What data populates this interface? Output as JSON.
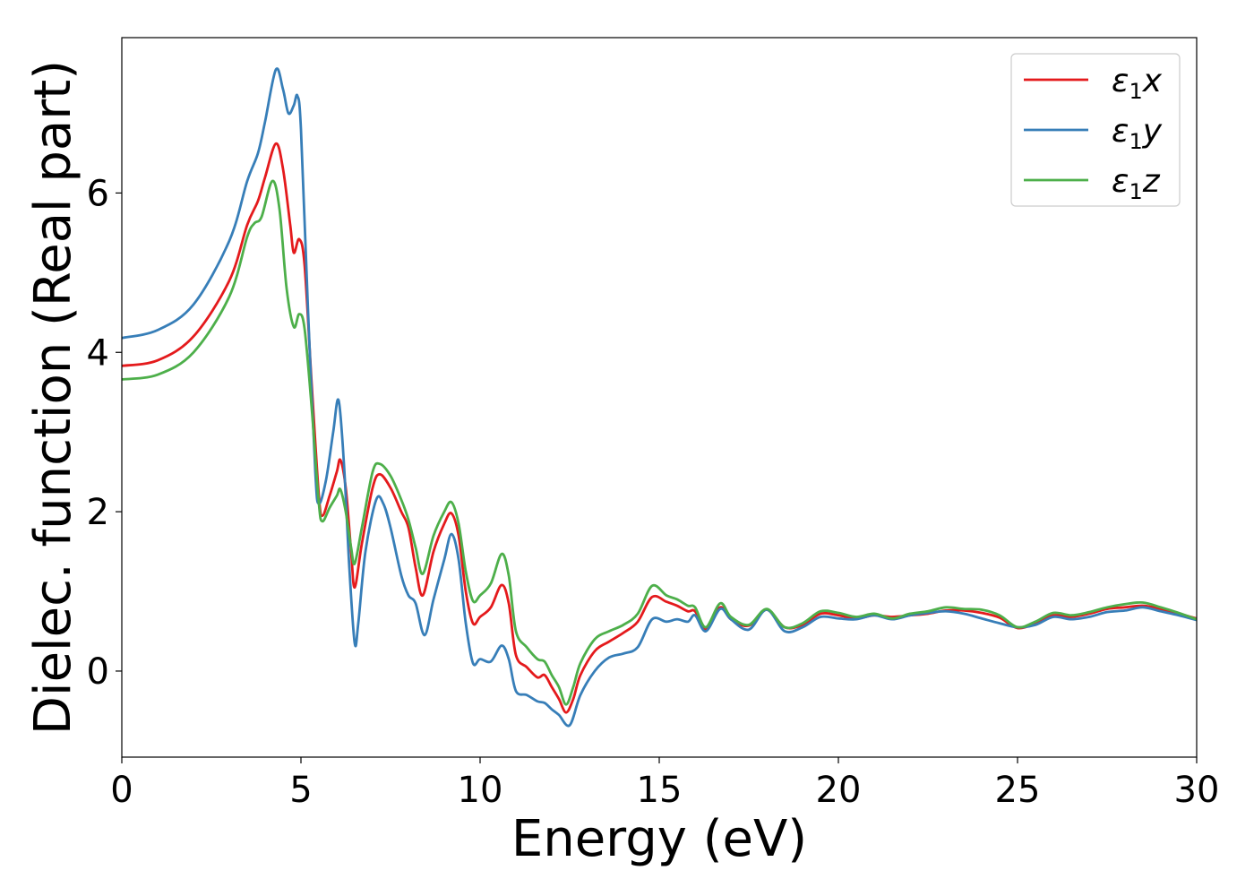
{
  "chart_data": {
    "type": "line",
    "xlabel": "Energy (eV)",
    "ylabel": "Dielec. function (Real part)",
    "xlim": [
      0,
      30
    ],
    "ylim": [
      -1.08,
      7.95
    ],
    "xticks": [
      0,
      5,
      10,
      15,
      20,
      25,
      30
    ],
    "yticks": [
      0,
      2,
      4,
      6
    ],
    "grid": false,
    "legend_position": "top-right",
    "series": [
      {
        "name": "ε1x",
        "label_base": "ε",
        "label_sub": "1",
        "label_var": "x",
        "color": "#e41a1c",
        "points": [
          [
            0,
            3.83
          ],
          [
            1,
            3.9
          ],
          [
            2,
            4.2
          ],
          [
            3,
            4.9
          ],
          [
            3.5,
            5.6
          ],
          [
            3.8,
            5.9
          ],
          [
            4.0,
            6.2
          ],
          [
            4.3,
            6.62
          ],
          [
            4.5,
            6.3
          ],
          [
            4.7,
            5.6
          ],
          [
            4.8,
            5.25
          ],
          [
            4.95,
            5.42
          ],
          [
            5.1,
            5.1
          ],
          [
            5.3,
            3.6
          ],
          [
            5.5,
            2.2
          ],
          [
            5.6,
            1.95
          ],
          [
            5.8,
            2.2
          ],
          [
            6.0,
            2.5
          ],
          [
            6.1,
            2.65
          ],
          [
            6.25,
            2.3
          ],
          [
            6.4,
            1.5
          ],
          [
            6.5,
            1.05
          ],
          [
            6.7,
            1.6
          ],
          [
            7.0,
            2.3
          ],
          [
            7.2,
            2.47
          ],
          [
            7.5,
            2.3
          ],
          [
            7.8,
            2.0
          ],
          [
            8.0,
            1.8
          ],
          [
            8.2,
            1.3
          ],
          [
            8.4,
            0.95
          ],
          [
            8.7,
            1.5
          ],
          [
            9.0,
            1.85
          ],
          [
            9.2,
            1.98
          ],
          [
            9.4,
            1.7
          ],
          [
            9.6,
            1.0
          ],
          [
            9.8,
            0.6
          ],
          [
            10.0,
            0.68
          ],
          [
            10.3,
            0.8
          ],
          [
            10.6,
            1.08
          ],
          [
            10.8,
            0.85
          ],
          [
            11.0,
            0.2
          ],
          [
            11.3,
            0.05
          ],
          [
            11.6,
            -0.08
          ],
          [
            11.8,
            -0.05
          ],
          [
            12.0,
            -0.2
          ],
          [
            12.2,
            -0.35
          ],
          [
            12.4,
            -0.52
          ],
          [
            12.6,
            -0.35
          ],
          [
            12.8,
            -0.05
          ],
          [
            13.2,
            0.25
          ],
          [
            13.6,
            0.37
          ],
          [
            14.0,
            0.48
          ],
          [
            14.4,
            0.62
          ],
          [
            14.8,
            0.93
          ],
          [
            15.2,
            0.87
          ],
          [
            15.5,
            0.82
          ],
          [
            15.8,
            0.75
          ],
          [
            16.0,
            0.75
          ],
          [
            16.3,
            0.52
          ],
          [
            16.7,
            0.8
          ],
          [
            17.0,
            0.65
          ],
          [
            17.5,
            0.57
          ],
          [
            18.0,
            0.77
          ],
          [
            18.5,
            0.55
          ],
          [
            19.0,
            0.58
          ],
          [
            19.5,
            0.72
          ],
          [
            20.0,
            0.7
          ],
          [
            20.5,
            0.66
          ],
          [
            21.0,
            0.7
          ],
          [
            21.5,
            0.68
          ],
          [
            22.0,
            0.7
          ],
          [
            22.5,
            0.72
          ],
          [
            23.0,
            0.76
          ],
          [
            23.5,
            0.76
          ],
          [
            24.0,
            0.73
          ],
          [
            24.5,
            0.67
          ],
          [
            25.0,
            0.54
          ],
          [
            25.5,
            0.6
          ],
          [
            26.0,
            0.7
          ],
          [
            26.5,
            0.68
          ],
          [
            27.0,
            0.72
          ],
          [
            27.5,
            0.78
          ],
          [
            28.0,
            0.8
          ],
          [
            28.5,
            0.82
          ],
          [
            29.0,
            0.78
          ],
          [
            29.5,
            0.72
          ],
          [
            30.0,
            0.66
          ]
        ]
      },
      {
        "name": "ε1y",
        "label_base": "ε",
        "label_sub": "1",
        "label_var": "y",
        "color": "#377eb8",
        "points": [
          [
            0,
            4.18
          ],
          [
            1,
            4.28
          ],
          [
            2,
            4.6
          ],
          [
            3,
            5.4
          ],
          [
            3.5,
            6.15
          ],
          [
            3.8,
            6.5
          ],
          [
            4.0,
            6.9
          ],
          [
            4.3,
            7.55
          ],
          [
            4.5,
            7.3
          ],
          [
            4.65,
            7.0
          ],
          [
            4.8,
            7.1
          ],
          [
            4.9,
            7.22
          ],
          [
            5.0,
            6.8
          ],
          [
            5.2,
            4.5
          ],
          [
            5.4,
            2.5
          ],
          [
            5.5,
            2.1
          ],
          [
            5.7,
            2.4
          ],
          [
            5.9,
            3.0
          ],
          [
            6.05,
            3.4
          ],
          [
            6.2,
            2.6
          ],
          [
            6.35,
            1.3
          ],
          [
            6.5,
            0.35
          ],
          [
            6.6,
            0.6
          ],
          [
            6.8,
            1.5
          ],
          [
            7.1,
            2.15
          ],
          [
            7.3,
            2.1
          ],
          [
            7.5,
            1.8
          ],
          [
            7.8,
            1.2
          ],
          [
            8.0,
            0.95
          ],
          [
            8.2,
            0.85
          ],
          [
            8.45,
            0.45
          ],
          [
            8.7,
            0.9
          ],
          [
            9.0,
            1.4
          ],
          [
            9.2,
            1.72
          ],
          [
            9.4,
            1.4
          ],
          [
            9.6,
            0.6
          ],
          [
            9.8,
            0.1
          ],
          [
            10.0,
            0.15
          ],
          [
            10.3,
            0.12
          ],
          [
            10.6,
            0.32
          ],
          [
            10.8,
            0.15
          ],
          [
            11.0,
            -0.25
          ],
          [
            11.3,
            -0.3
          ],
          [
            11.6,
            -0.38
          ],
          [
            11.8,
            -0.4
          ],
          [
            12.0,
            -0.48
          ],
          [
            12.2,
            -0.55
          ],
          [
            12.5,
            -0.68
          ],
          [
            12.8,
            -0.3
          ],
          [
            13.2,
            0.0
          ],
          [
            13.6,
            0.17
          ],
          [
            14.0,
            0.22
          ],
          [
            14.4,
            0.3
          ],
          [
            14.8,
            0.65
          ],
          [
            15.2,
            0.62
          ],
          [
            15.5,
            0.65
          ],
          [
            15.8,
            0.62
          ],
          [
            16.0,
            0.7
          ],
          [
            16.3,
            0.5
          ],
          [
            16.7,
            0.78
          ],
          [
            17.0,
            0.65
          ],
          [
            17.5,
            0.52
          ],
          [
            18.0,
            0.77
          ],
          [
            18.5,
            0.5
          ],
          [
            19.0,
            0.55
          ],
          [
            19.5,
            0.68
          ],
          [
            20.0,
            0.66
          ],
          [
            20.5,
            0.65
          ],
          [
            21.0,
            0.7
          ],
          [
            21.5,
            0.65
          ],
          [
            22.0,
            0.7
          ],
          [
            22.5,
            0.73
          ],
          [
            23.0,
            0.75
          ],
          [
            23.5,
            0.72
          ],
          [
            24.0,
            0.66
          ],
          [
            24.5,
            0.6
          ],
          [
            25.0,
            0.55
          ],
          [
            25.5,
            0.58
          ],
          [
            26.0,
            0.68
          ],
          [
            26.5,
            0.65
          ],
          [
            27.0,
            0.68
          ],
          [
            27.5,
            0.74
          ],
          [
            28.0,
            0.76
          ],
          [
            28.5,
            0.8
          ],
          [
            29.0,
            0.75
          ],
          [
            29.5,
            0.7
          ],
          [
            30.0,
            0.64
          ]
        ]
      },
      {
        "name": "ε1z",
        "label_base": "ε",
        "label_sub": "1",
        "label_var": "z",
        "color": "#4daf4a",
        "points": [
          [
            0,
            3.66
          ],
          [
            1,
            3.72
          ],
          [
            2,
            4.0
          ],
          [
            3,
            4.7
          ],
          [
            3.5,
            5.45
          ],
          [
            3.7,
            5.62
          ],
          [
            3.9,
            5.7
          ],
          [
            4.2,
            6.15
          ],
          [
            4.4,
            5.8
          ],
          [
            4.6,
            4.8
          ],
          [
            4.8,
            4.32
          ],
          [
            4.95,
            4.48
          ],
          [
            5.1,
            4.3
          ],
          [
            5.3,
            3.3
          ],
          [
            5.5,
            2.1
          ],
          [
            5.6,
            1.88
          ],
          [
            5.8,
            2.05
          ],
          [
            6.0,
            2.2
          ],
          [
            6.1,
            2.28
          ],
          [
            6.25,
            2.0
          ],
          [
            6.4,
            1.55
          ],
          [
            6.5,
            1.35
          ],
          [
            6.7,
            1.8
          ],
          [
            7.0,
            2.5
          ],
          [
            7.2,
            2.6
          ],
          [
            7.5,
            2.45
          ],
          [
            7.8,
            2.15
          ],
          [
            8.0,
            1.9
          ],
          [
            8.2,
            1.55
          ],
          [
            8.4,
            1.22
          ],
          [
            8.7,
            1.7
          ],
          [
            9.0,
            2.0
          ],
          [
            9.2,
            2.12
          ],
          [
            9.4,
            1.85
          ],
          [
            9.6,
            1.25
          ],
          [
            9.8,
            0.88
          ],
          [
            10.0,
            0.95
          ],
          [
            10.3,
            1.1
          ],
          [
            10.6,
            1.47
          ],
          [
            10.8,
            1.2
          ],
          [
            11.0,
            0.5
          ],
          [
            11.3,
            0.3
          ],
          [
            11.6,
            0.15
          ],
          [
            11.8,
            0.12
          ],
          [
            12.0,
            -0.05
          ],
          [
            12.2,
            -0.2
          ],
          [
            12.4,
            -0.42
          ],
          [
            12.6,
            -0.2
          ],
          [
            12.8,
            0.1
          ],
          [
            13.2,
            0.4
          ],
          [
            13.6,
            0.5
          ],
          [
            14.0,
            0.58
          ],
          [
            14.4,
            0.72
          ],
          [
            14.8,
            1.07
          ],
          [
            15.2,
            0.95
          ],
          [
            15.5,
            0.9
          ],
          [
            15.8,
            0.82
          ],
          [
            16.0,
            0.8
          ],
          [
            16.3,
            0.55
          ],
          [
            16.7,
            0.85
          ],
          [
            17.0,
            0.68
          ],
          [
            17.5,
            0.58
          ],
          [
            18.0,
            0.78
          ],
          [
            18.5,
            0.55
          ],
          [
            19.0,
            0.6
          ],
          [
            19.5,
            0.75
          ],
          [
            20.0,
            0.73
          ],
          [
            20.5,
            0.68
          ],
          [
            21.0,
            0.72
          ],
          [
            21.5,
            0.66
          ],
          [
            22.0,
            0.72
          ],
          [
            22.5,
            0.75
          ],
          [
            23.0,
            0.8
          ],
          [
            23.5,
            0.78
          ],
          [
            24.0,
            0.77
          ],
          [
            24.5,
            0.7
          ],
          [
            25.0,
            0.55
          ],
          [
            25.5,
            0.62
          ],
          [
            26.0,
            0.73
          ],
          [
            26.5,
            0.7
          ],
          [
            27.0,
            0.74
          ],
          [
            27.5,
            0.8
          ],
          [
            28.0,
            0.84
          ],
          [
            28.5,
            0.86
          ],
          [
            29.0,
            0.8
          ],
          [
            29.5,
            0.73
          ],
          [
            30.0,
            0.65
          ]
        ]
      }
    ]
  }
}
